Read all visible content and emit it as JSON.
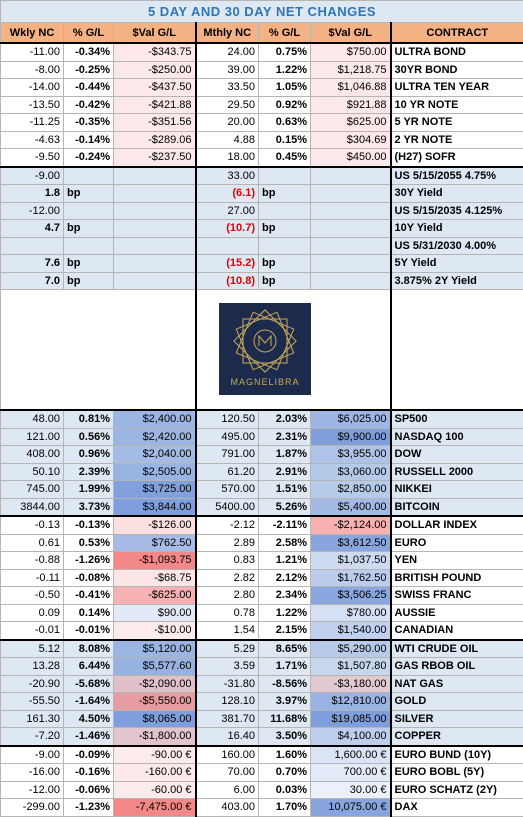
{
  "header": {
    "title": "5 DAY AND 30 DAY NET CHANGES",
    "columns": [
      "Wkly NC",
      "% G/L",
      "$Val G/L",
      "Mthly NC",
      "% G/L",
      "$Val G/L",
      "CONTRACT"
    ]
  },
  "sections": [
    {
      "rows": [
        [
          "-11.00",
          "-0.34%",
          "-$343.75",
          "24.00",
          "0.75%",
          "$750.00",
          "ULTRA BOND"
        ],
        [
          "-8.00",
          "-0.25%",
          "-$250.00",
          "39.00",
          "1.22%",
          "$1,218.75",
          "30YR BOND"
        ],
        [
          "-14.00",
          "-0.44%",
          "-$437.50",
          "33.50",
          "1.05%",
          "$1,046.88",
          "ULTRA TEN YEAR"
        ],
        [
          "-13.50",
          "-0.42%",
          "-$421.88",
          "29.50",
          "0.92%",
          "$921.88",
          "10 YR NOTE"
        ],
        [
          "-11.25",
          "-0.35%",
          "-$351.56",
          "20.00",
          "0.63%",
          "$625.00",
          "5 YR NOTE"
        ],
        [
          "-4.63",
          "-0.14%",
          "-$289.06",
          "4.88",
          "0.15%",
          "$304.69",
          "2 YR NOTE"
        ],
        [
          "-9.50",
          "-0.24%",
          "-$237.50",
          "18.00",
          "0.45%",
          "$450.00",
          "(H27) SOFR"
        ]
      ]
    },
    {
      "rows": [
        {
          "wkly": "-9.00",
          "mthly": "33.00",
          "contract": "US 5/15/2055 4.75%"
        },
        {
          "wkly": "1.8",
          "wkly_pct": "bp",
          "mthly": "(6.1)",
          "mthly_pct": "bp",
          "contract": "30Y Yield"
        },
        {
          "wkly": "-12.00",
          "mthly": "27.00",
          "contract": "US 5/15/2035 4.125%"
        },
        {
          "wkly": "4.7",
          "wkly_pct": "bp",
          "mthly": "(10.7)",
          "mthly_pct": "bp",
          "contract": "10Y Yield"
        },
        {
          "contract": "US 5/31/2030 4.00%"
        },
        {
          "wkly": "7.6",
          "wkly_pct": "bp",
          "mthly": "(15.2)",
          "mthly_pct": "bp",
          "contract": "5Y Yield"
        },
        {
          "wkly": "7.0",
          "wkly_pct": "bp",
          "mthly": "(10.8)",
          "mthly_pct": "bp",
          "contract": "3.875% 2Y Yield"
        }
      ]
    },
    {
      "rows": [
        [
          "48.00",
          "0.81%",
          "$2,400.00",
          "120.50",
          "2.03%",
          "$6,025.00",
          "SP500"
        ],
        [
          "121.00",
          "0.56%",
          "$2,420.00",
          "495.00",
          "2.31%",
          "$9,900.00",
          "NASDAQ 100"
        ],
        [
          "408.00",
          "0.96%",
          "$2,040.00",
          "791.00",
          "1.87%",
          "$3,955.00",
          "DOW"
        ],
        [
          "50.10",
          "2.39%",
          "$2,505.00",
          "61.20",
          "2.91%",
          "$3,060.00",
          "RUSSELL 2000"
        ],
        [
          "745.00",
          "1.99%",
          "$3,725.00",
          "570.00",
          "1.51%",
          "$2,850.00",
          "NIKKEI"
        ],
        [
          "3844.00",
          "3.73%",
          "$3,844.00",
          "5400.00",
          "5.26%",
          "$5,400.00",
          "BITCOIN"
        ]
      ]
    },
    {
      "rows": [
        [
          "-0.13",
          "-0.13%",
          "-$126.00",
          "-2.12",
          "-2.11%",
          "-$2,124.00",
          "DOLLAR INDEX"
        ],
        [
          "0.61",
          "0.53%",
          "$762.50",
          "2.89",
          "2.58%",
          "$3,612.50",
          "EURO"
        ],
        [
          "-0.88",
          "-1.26%",
          "-$1,093.75",
          "0.83",
          "1.21%",
          "$1,037.50",
          "YEN"
        ],
        [
          "-0.11",
          "-0.08%",
          "-$68.75",
          "2.82",
          "2.12%",
          "$1,762.50",
          "BRITISH POUND"
        ],
        [
          "-0.50",
          "-0.41%",
          "-$625.00",
          "2.80",
          "2.34%",
          "$3,506.25",
          "SWISS FRANC"
        ],
        [
          "0.09",
          "0.14%",
          "$90.00",
          "0.78",
          "1.22%",
          "$780.00",
          "AUSSIE"
        ],
        [
          "-0.01",
          "-0.01%",
          "-$10.00",
          "1.54",
          "2.15%",
          "$1,540.00",
          "CANADIAN"
        ]
      ]
    },
    {
      "rows": [
        [
          "5.12",
          "8.08%",
          "$5,120.00",
          "5.29",
          "8.65%",
          "$5,290.00",
          "WTI CRUDE OIL"
        ],
        [
          "13.28",
          "6.44%",
          "$5,577.60",
          "3.59",
          "1.71%",
          "$1,507.80",
          "GAS RBOB OIL"
        ],
        [
          "-20.90",
          "-5.68%",
          "-$2,090.00",
          "-31.80",
          "-8.56%",
          "-$3,180.00",
          "NAT GAS"
        ],
        [
          "-55.50",
          "-1.64%",
          "-$5,550.00",
          "128.10",
          "3.97%",
          "$12,810.00",
          "GOLD"
        ],
        [
          "161.30",
          "4.50%",
          "$8,065.00",
          "381.70",
          "11.68%",
          "$19,085.00",
          "SILVER"
        ],
        [
          "-7.20",
          "-1.46%",
          "-$1,800.00",
          "16.40",
          "3.50%",
          "$4,100.00",
          "COPPER"
        ]
      ]
    },
    {
      "rows": [
        [
          "-9.00",
          "-0.09%",
          "-90.00 €",
          "160.00",
          "1.60%",
          "1,600.00 €",
          "EURO BUND (10Y)"
        ],
        [
          "-16.00",
          "-0.16%",
          "-160.00 €",
          "70.00",
          "0.70%",
          "700.00 €",
          "EURO BOBL (5Y)"
        ],
        [
          "-12.00",
          "-0.06%",
          "-60.00 €",
          "6.00",
          "0.03%",
          "30.00 €",
          "EURO SCHATZ (2Y)"
        ],
        [
          "-299.00",
          "-1.23%",
          "-7,475.00 €",
          "403.00",
          "1.70%",
          "10,075.00 €",
          "DAX"
        ]
      ]
    }
  ],
  "logo": {
    "text": "MAGNELIBRA"
  }
}
